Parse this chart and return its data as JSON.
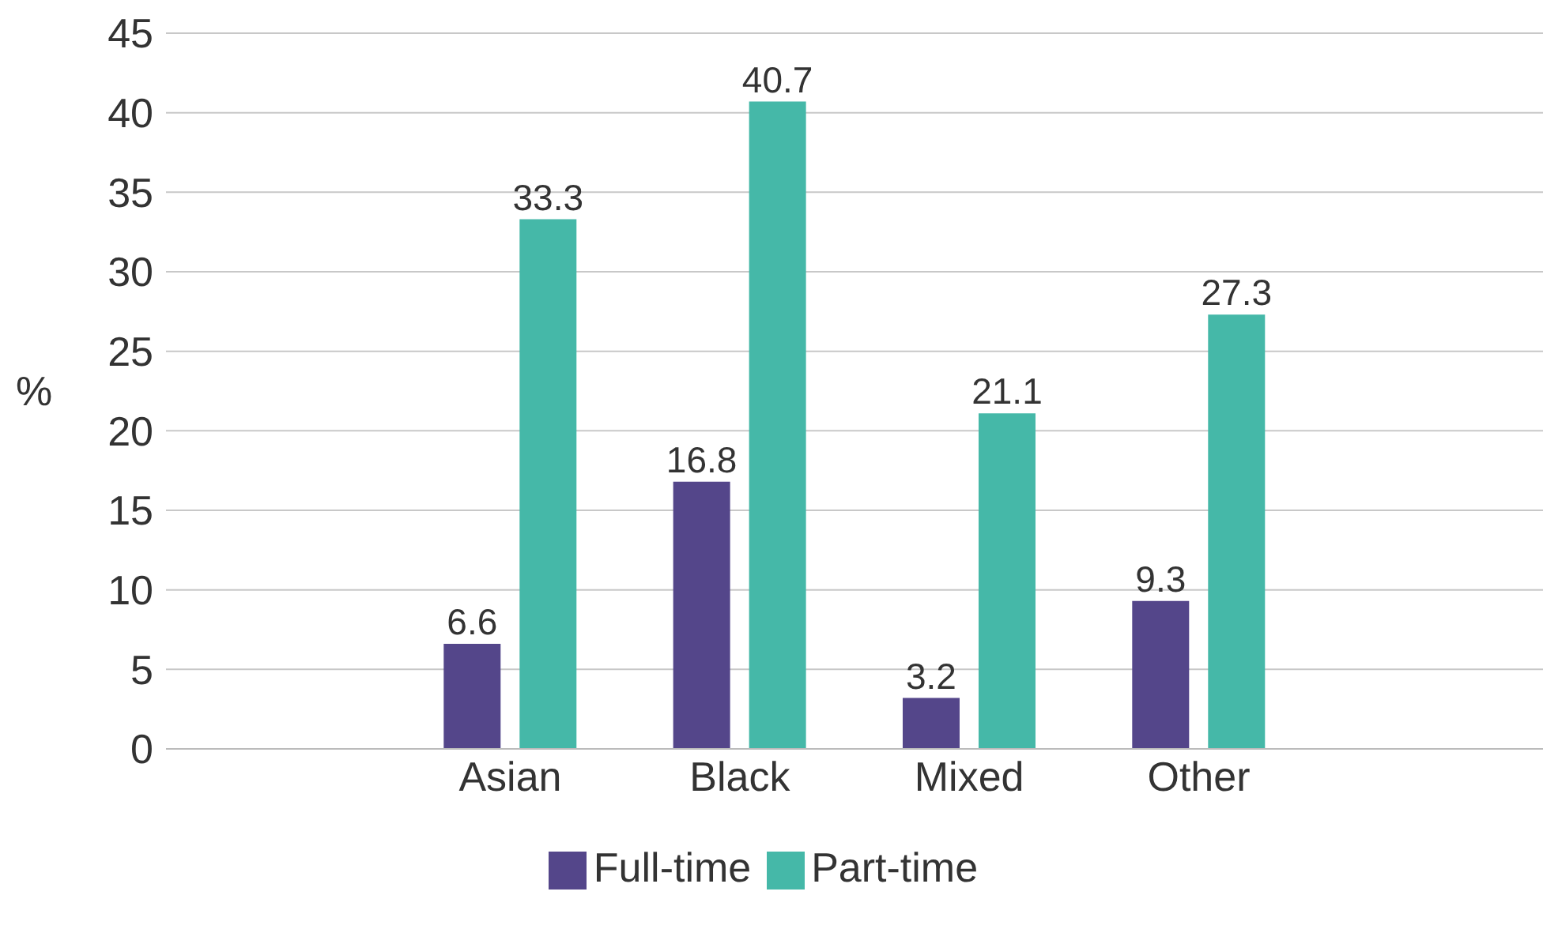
{
  "chart_data": {
    "type": "bar",
    "ylabel": "%",
    "categories": [
      null,
      "Asian",
      "Black",
      "Mixed",
      "Other",
      null
    ],
    "series": [
      {
        "name": "Full-time",
        "color": "#54468a",
        "values": [
          null,
          6.6,
          16.8,
          3.2,
          9.3,
          null
        ]
      },
      {
        "name": "Part-time",
        "color": "#45b8a8",
        "values": [
          null,
          33.3,
          40.7,
          21.1,
          27.3,
          null
        ]
      }
    ],
    "ylim": [
      0,
      45
    ],
    "yticks": [
      0,
      5,
      10,
      15,
      20,
      25,
      30,
      35,
      40,
      45
    ],
    "grid": "y",
    "legend": "bottom",
    "data_labels": true
  }
}
